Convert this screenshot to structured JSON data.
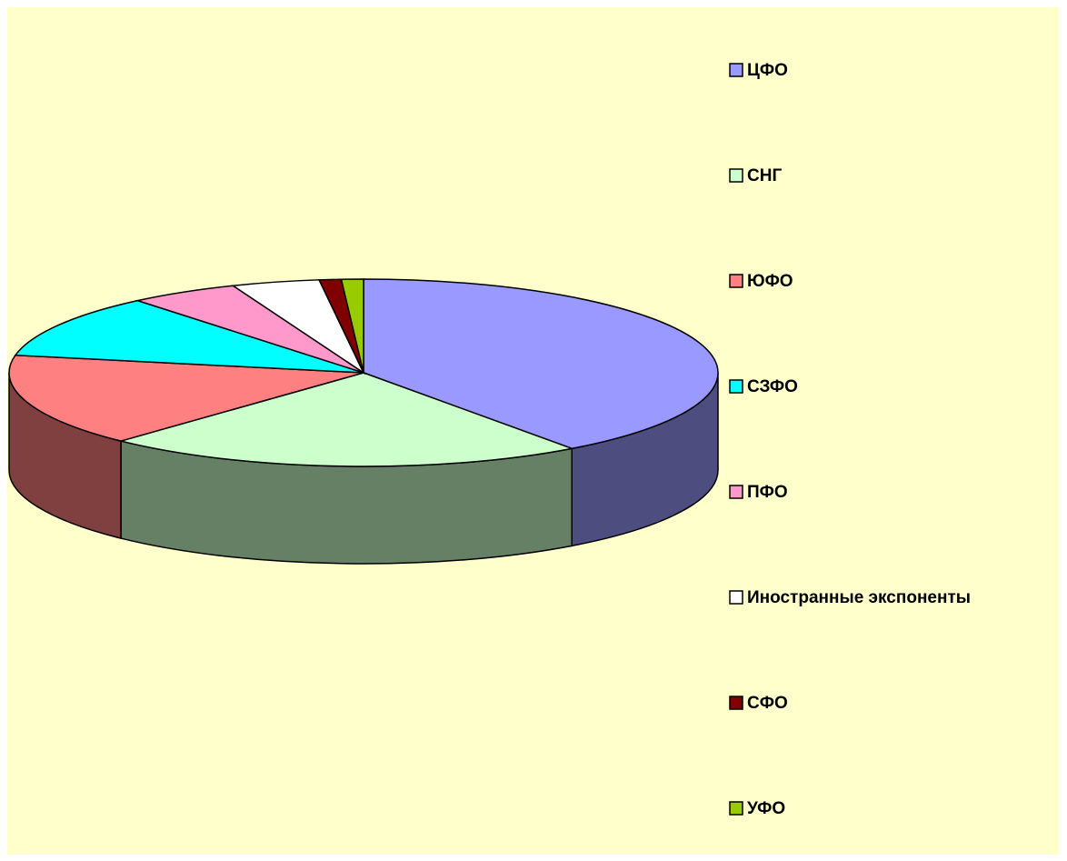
{
  "chart_data": {
    "type": "pie",
    "labels": [
      "ЦФО",
      "СНГ",
      "ЮФО",
      "СЗФО",
      "ПФО",
      "Иностранные экспоненты",
      "СФО",
      "УФО"
    ],
    "values": [
      40,
      22,
      16,
      11,
      5,
      4,
      1,
      1
    ],
    "colors": [
      "#9999ff",
      "#ccffcc",
      "#ff8080",
      "#00ffff",
      "#ff99cc",
      "#ffffff",
      "#800000",
      "#99cc00"
    ],
    "legend": "right"
  }
}
